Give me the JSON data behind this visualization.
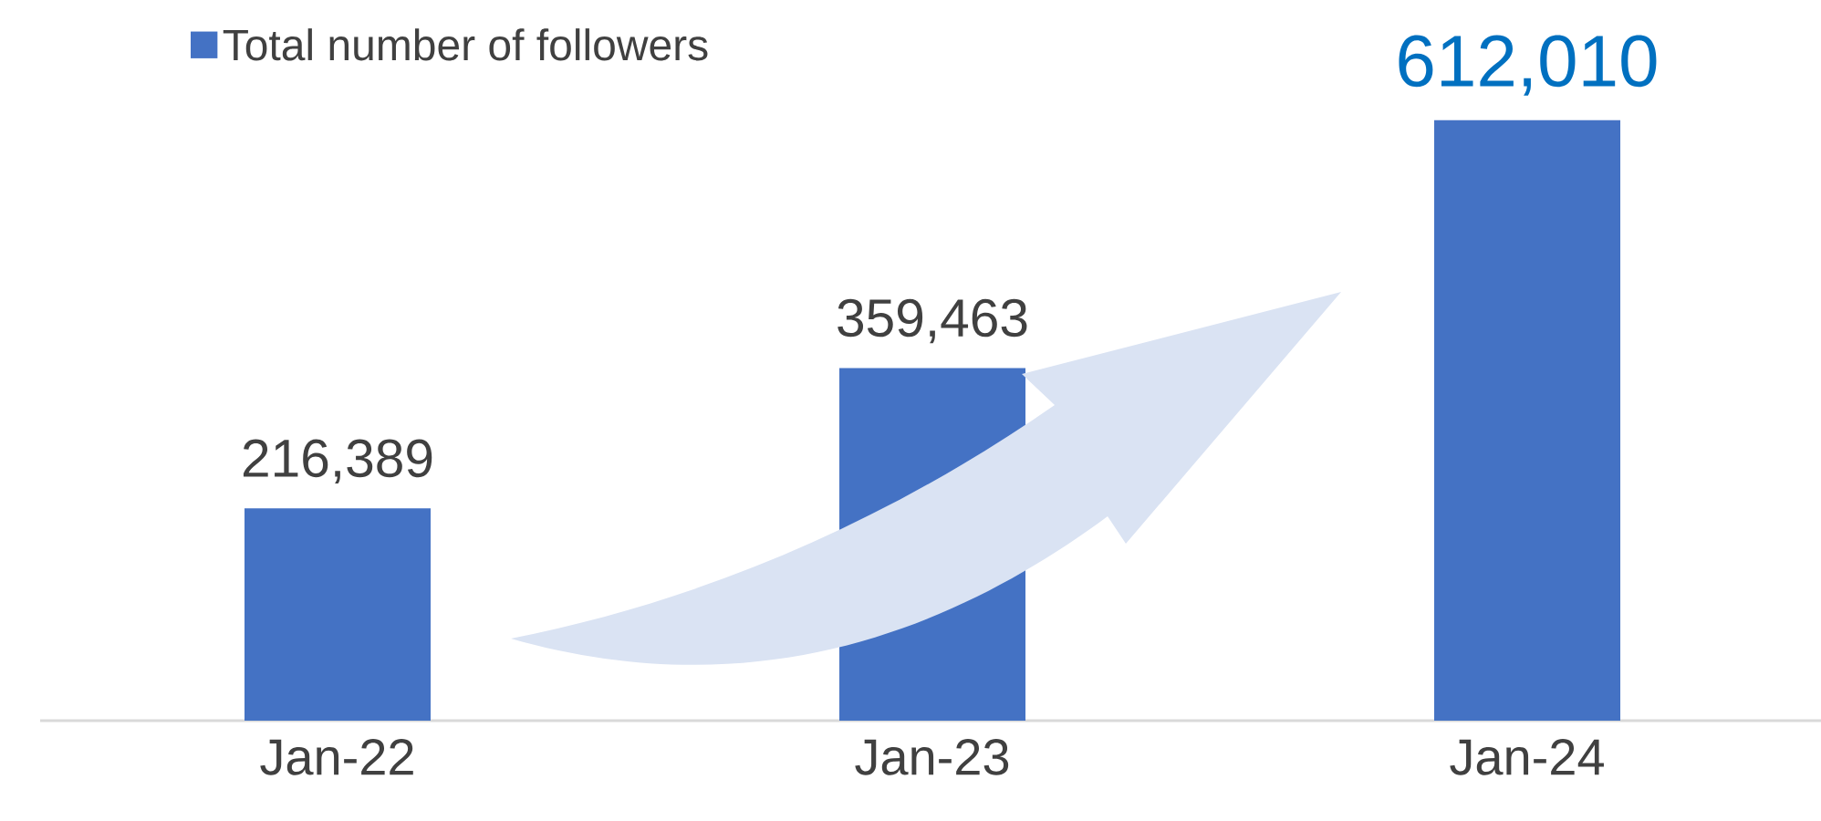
{
  "chart_data": {
    "type": "bar",
    "categories": [
      "Jan-22",
      "Jan-23",
      "Jan-24"
    ],
    "series": [
      {
        "name": "Total number of followers",
        "color": "#4472c4",
        "values": [
          216389,
          359463,
          612010
        ],
        "value_labels": [
          "216,389",
          "359,463",
          "612,010"
        ]
      }
    ],
    "legend": "top left",
    "grid": false
  }
}
